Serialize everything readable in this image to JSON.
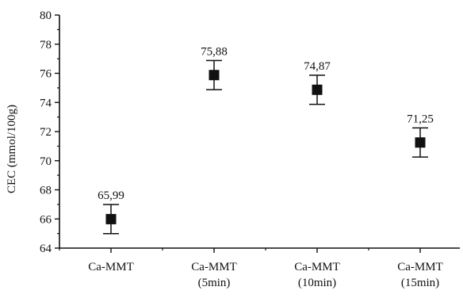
{
  "chart_data": {
    "type": "scatter",
    "title": "",
    "xlabel": "",
    "ylabel": "CEC (mmol/100g)",
    "ylim": [
      64,
      80
    ],
    "yticks": [
      64,
      66,
      68,
      70,
      72,
      74,
      76,
      78,
      80
    ],
    "grid": false,
    "legend": "none",
    "marker": "filled-square",
    "marker_color": "#111111",
    "categories": [
      [
        "Ca-MMT"
      ],
      [
        "Ca-MMT",
        "(5min)"
      ],
      [
        "Ca-MMT",
        "(10min)"
      ],
      [
        "Ca-MMT",
        "(15min)"
      ]
    ],
    "values": [
      65.99,
      75.88,
      74.87,
      71.25
    ],
    "data_labels": [
      "65,99",
      "75,88",
      "74,87",
      "71,25"
    ],
    "error": [
      1.0,
      1.0,
      1.0,
      1.0
    ]
  }
}
